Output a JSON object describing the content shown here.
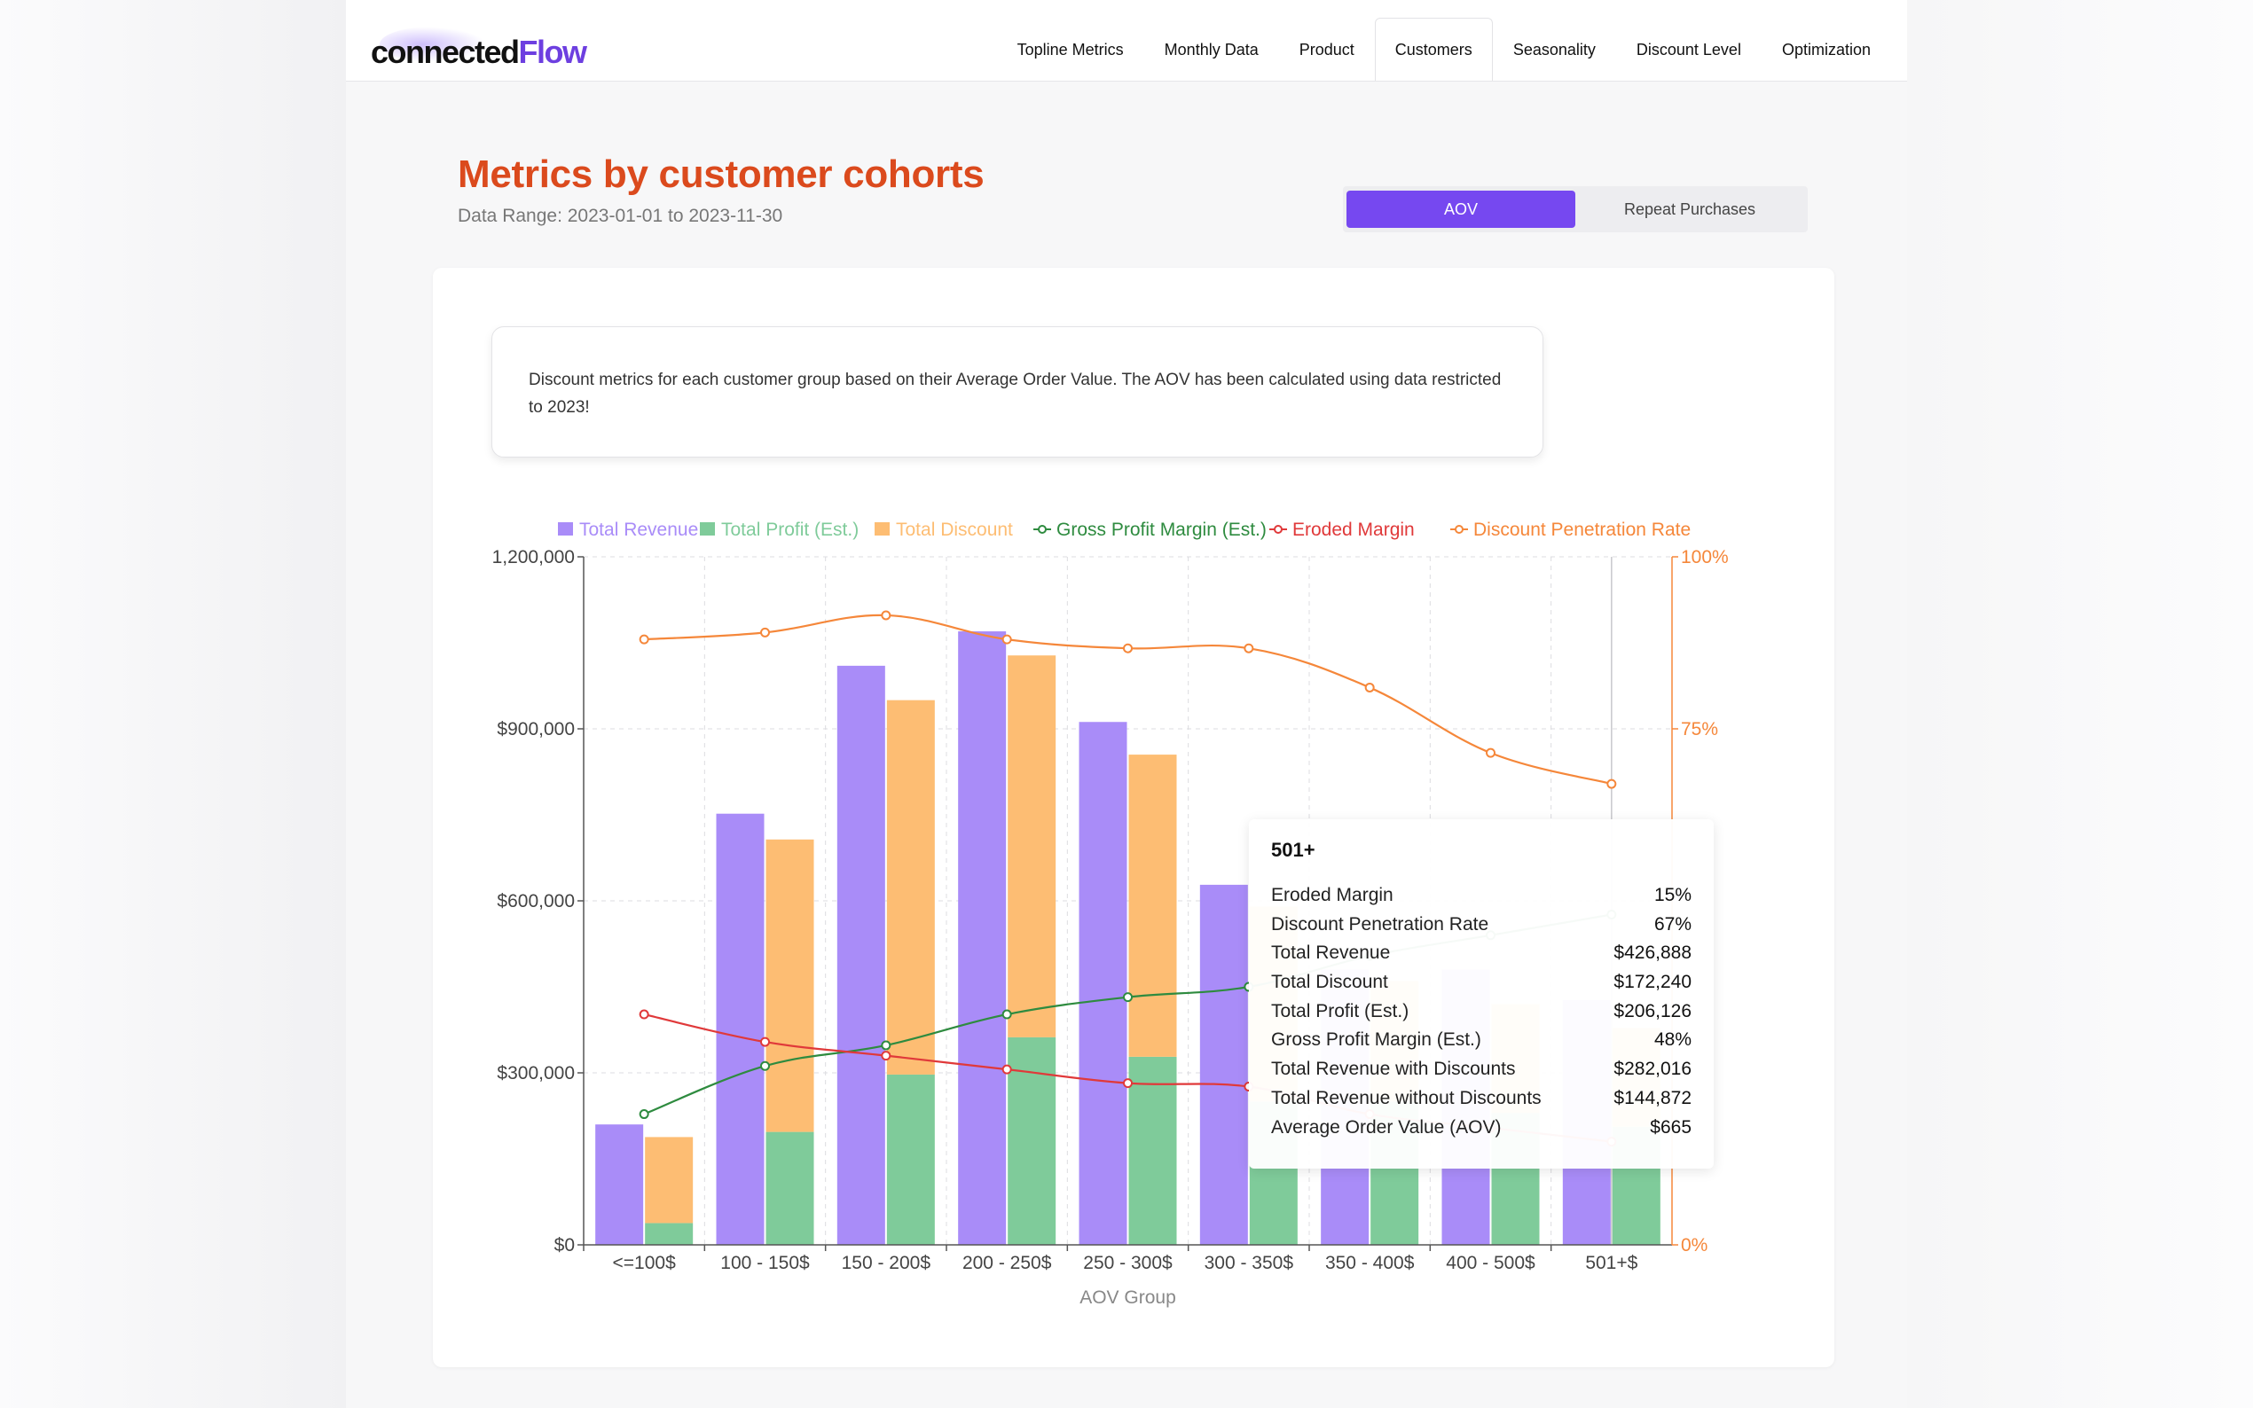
{
  "brand": {
    "part1": "connected",
    "part2": "Flow"
  },
  "nav": {
    "tabs": [
      {
        "label": "Topline Metrics"
      },
      {
        "label": "Monthly Data"
      },
      {
        "label": "Product"
      },
      {
        "label": "Customers",
        "active": true
      },
      {
        "label": "Seasonality"
      },
      {
        "label": "Discount Level"
      },
      {
        "label": "Optimization"
      }
    ]
  },
  "header": {
    "title": "Metrics by customer cohorts",
    "range": "Data Range: 2023-01-01 to 2023-11-30"
  },
  "toggle": {
    "selected": "AOV",
    "other": "Repeat Purchases"
  },
  "note": {
    "text": "Discount metrics for each customer group based on their Average Order Value. The AOV has been calculated using data restricted to 2023!"
  },
  "colors": {
    "accent": "#7648f0",
    "title": "#db4a1d",
    "revenue": "#a98cf8",
    "profit": "#7fcb9a",
    "discount": "#fdbd73",
    "gross_margin": "#2e8b3f",
    "eroded_margin": "#e0393a",
    "penetration": "#f5873a"
  },
  "chart_data": {
    "type": "bar",
    "xlabel": "AOV Group",
    "categories": [
      "<=100$",
      "100 - 150$",
      "150 - 200$",
      "200 - 250$",
      "250 - 300$",
      "300 - 350$",
      "350 - 400$",
      "400 - 500$",
      "501+$"
    ],
    "y_left": {
      "ylim": [
        0,
        1200000
      ],
      "ticks": [
        "$0",
        "$300,000",
        "$600,000",
        "$900,000",
        "1,200,000"
      ]
    },
    "y_right": {
      "ylim": [
        0,
        100
      ],
      "ticks": [
        "0%",
        "75%",
        "100%"
      ]
    },
    "legend_placement": "top",
    "grid": true,
    "series": [
      {
        "name": "Total Revenue",
        "kind": "bar",
        "stack": "revenue",
        "values": [
          210000,
          752000,
          1010000,
          1070000,
          912000,
          628000,
          480000,
          480000,
          426888
        ]
      },
      {
        "name": "Total Profit (Est.)",
        "kind": "bar",
        "stack": "cost",
        "values": [
          38000,
          197000,
          297000,
          362000,
          328000,
          250000,
          250000,
          230000,
          206126
        ]
      },
      {
        "name": "Total Discount",
        "kind": "bar",
        "stack": "cost",
        "values": [
          150000,
          510000,
          653000,
          666000,
          527000,
          340000,
          210000,
          190000,
          172240
        ]
      },
      {
        "name": "Gross Profit Margin (Est.)",
        "kind": "line",
        "axis": "right",
        "values": [
          19,
          26,
          29,
          33.5,
          36,
          37.5,
          42,
          45,
          48
        ]
      },
      {
        "name": "Eroded Margin",
        "kind": "line",
        "axis": "right",
        "values": [
          33.5,
          29.5,
          27.5,
          25.5,
          23.5,
          23,
          19,
          17,
          15
        ]
      },
      {
        "name": "Discount Penetration Rate",
        "kind": "line",
        "axis": "right",
        "values": [
          88,
          89,
          91.5,
          88,
          86.7,
          86.7,
          81,
          71.5,
          67
        ]
      }
    ]
  },
  "tooltip": {
    "title": "501+",
    "rows": [
      {
        "label": "Eroded Margin",
        "value": "15%"
      },
      {
        "label": "Discount Penetration Rate",
        "value": "67%"
      },
      {
        "label": "Total Revenue",
        "value": "$426,888"
      },
      {
        "label": "Total Discount",
        "value": "$172,240"
      },
      {
        "label": "Total Profit (Est.)",
        "value": "$206,126"
      },
      {
        "label": "Gross Profit Margin (Est.)",
        "value": "48%"
      },
      {
        "label": "Total Revenue with Discounts",
        "value": "$282,016"
      },
      {
        "label": "Total Revenue without Discounts",
        "value": "$144,872"
      },
      {
        "label": "Average Order Value (AOV)",
        "value": "$665"
      }
    ]
  }
}
